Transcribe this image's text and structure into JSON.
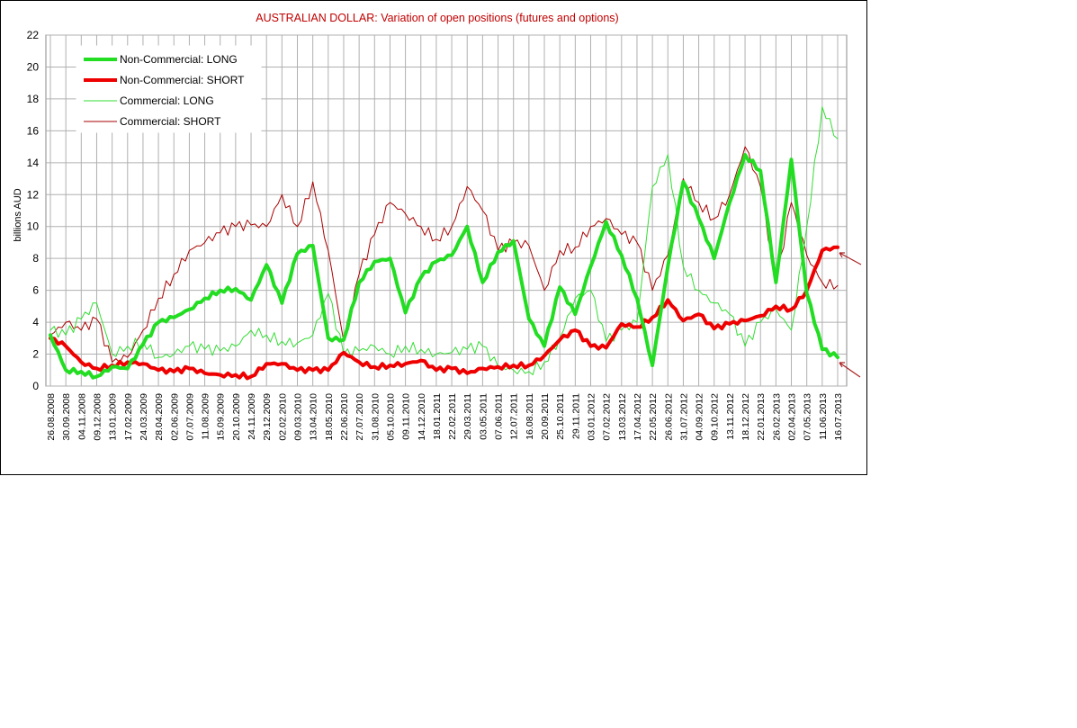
{
  "chart_data": {
    "type": "line",
    "title": "AUSTRALIAN DOLLAR: Variation of open positions (futures and options)",
    "ylabel": "billions AUD",
    "xlabel": "",
    "ylim": [
      0,
      22
    ],
    "yticks": [
      0,
      2,
      4,
      6,
      8,
      10,
      12,
      14,
      16,
      18,
      20,
      22
    ],
    "grid": true,
    "legend_position": "top-left",
    "x_tick_labels": [
      "26.08.2008",
      "30.09.2008",
      "04.11.2008",
      "09.12.2008",
      "13.01.2009",
      "17.02.2009",
      "24.03.2009",
      "28.04.2009",
      "02.06.2009",
      "07.07.2009",
      "11.08.2009",
      "15.09.2009",
      "20.10.2009",
      "24.11.2009",
      "29.12.2009",
      "02.02.2010",
      "09.03.2010",
      "13.04.2010",
      "18.05.2010",
      "22.06.2010",
      "27.07.2010",
      "31.08.2010",
      "05.10.2010",
      "09.11.2010",
      "14.12.2010",
      "18.01.2011",
      "22.02.2011",
      "29.03.2011",
      "03.05.2011",
      "07.06.2011",
      "12.07.2011",
      "16.08.2011",
      "20.09.2011",
      "25.10.2011",
      "29.11.2011",
      "03.01.2012",
      "07.02.2012",
      "13.03.2012",
      "17.04.2012",
      "22.05.2012",
      "26.06.2012",
      "31.07.2012",
      "04.09.2012",
      "09.10.2012",
      "13.11.2012",
      "18.12.2012",
      "22.01.2013",
      "26.02.2013",
      "02.04.2013",
      "07.05.2013",
      "11.06.2013",
      "16.07.2013"
    ],
    "series": [
      {
        "name": "Non-Commercial: LONG",
        "color": "#22dd22",
        "width": 4,
        "values": [
          3.2,
          1.0,
          0.9,
          0.6,
          1.2,
          1.1,
          2.6,
          4.0,
          4.3,
          4.8,
          5.5,
          6.0,
          6.1,
          5.4,
          7.6,
          5.2,
          8.3,
          8.8,
          3.0,
          2.9,
          6.5,
          7.8,
          8.0,
          4.6,
          6.8,
          7.8,
          8.2,
          10.0,
          6.5,
          8.4,
          9.1,
          4.2,
          2.5,
          6.2,
          4.5,
          7.5,
          10.3,
          8.2,
          5.5,
          1.3,
          7.5,
          12.8,
          10.5,
          8.0,
          11.5,
          14.5,
          13.5,
          6.5,
          14.2,
          5.8,
          2.3,
          1.8
        ]
      },
      {
        "name": "Non-Commercial: SHORT",
        "color": "#ee0000",
        "width": 4,
        "values": [
          3.0,
          2.5,
          1.5,
          1.1,
          1.3,
          1.5,
          1.4,
          1.0,
          0.9,
          1.1,
          0.8,
          0.7,
          0.7,
          0.6,
          1.4,
          1.4,
          1.0,
          1.0,
          1.0,
          2.1,
          1.5,
          1.2,
          1.3,
          1.4,
          1.6,
          1.0,
          1.1,
          0.8,
          1.1,
          1.2,
          1.3,
          1.3,
          1.9,
          2.9,
          3.5,
          2.5,
          2.4,
          3.9,
          3.7,
          4.3,
          5.4,
          4.1,
          4.5,
          3.6,
          3.9,
          4.1,
          4.4,
          5.0,
          4.8,
          6.0,
          8.5,
          8.7
        ]
      },
      {
        "name": "Commercial: LONG",
        "color": "#33dd33",
        "width": 1,
        "values": [
          3.5,
          3.2,
          4.2,
          5.2,
          2.0,
          2.5,
          2.8,
          1.8,
          2.0,
          2.5,
          2.3,
          2.2,
          2.5,
          3.5,
          3.2,
          2.8,
          2.7,
          3.2,
          5.8,
          2.0,
          2.2,
          2.5,
          2.0,
          2.5,
          2.3,
          2.0,
          2.1,
          2.3,
          2.5,
          1.2,
          1.0,
          0.9,
          1.5,
          3.0,
          5.5,
          6.0,
          2.8,
          3.5,
          4.0,
          12.5,
          14.5,
          7.5,
          6.0,
          5.2,
          4.5,
          2.5,
          4.0,
          4.8,
          3.5,
          10.0,
          17.5,
          15.5
        ]
      },
      {
        "name": "Commercial: SHORT",
        "color": "#aa0000",
        "width": 1,
        "values": [
          3.2,
          4.0,
          3.5,
          4.2,
          1.5,
          1.8,
          3.5,
          5.5,
          7.0,
          8.5,
          9.0,
          9.6,
          10.0,
          10.1,
          10.0,
          12.0,
          10.0,
          12.8,
          8.5,
          2.8,
          7.0,
          9.5,
          11.5,
          10.8,
          10.0,
          9.2,
          10.0,
          12.5,
          11.0,
          8.5,
          9.0,
          8.8,
          6.0,
          8.5,
          8.7,
          10.0,
          10.5,
          9.5,
          9.0,
          6.0,
          8.2,
          13.0,
          11.5,
          10.5,
          12.0,
          15.0,
          12.5,
          6.5,
          11.5,
          8.2,
          6.5,
          6.3
        ]
      }
    ]
  }
}
